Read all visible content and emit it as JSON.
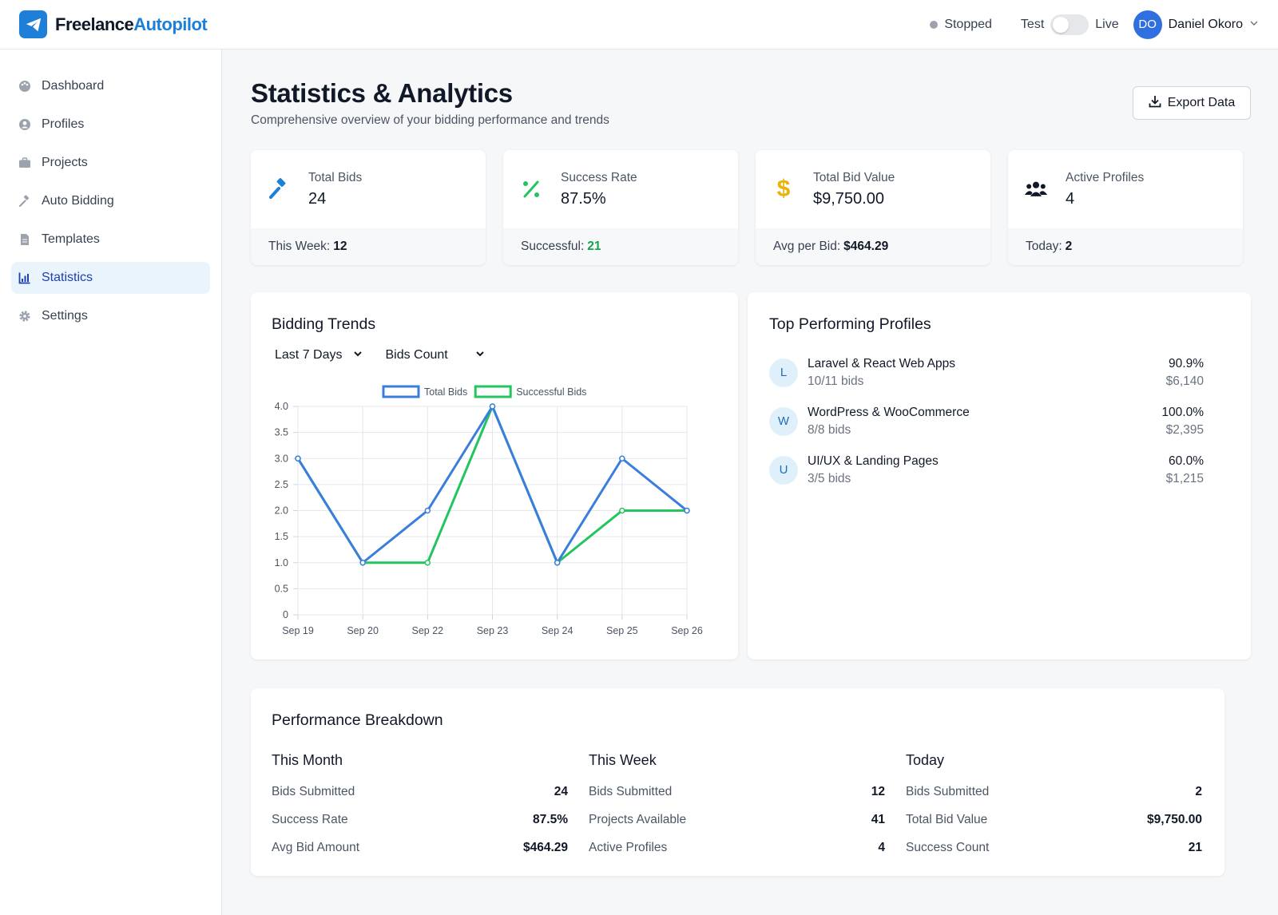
{
  "app": {
    "name_part1": "Freelance",
    "name_part2": "Autopilot"
  },
  "header": {
    "status_label": "Stopped",
    "mode_test": "Test",
    "mode_live": "Live",
    "user_initials": "DO",
    "user_name": "Daniel Okoro"
  },
  "sidebar": {
    "items": [
      {
        "label": "Dashboard",
        "icon": "palette-icon"
      },
      {
        "label": "Profiles",
        "icon": "user-circle-icon"
      },
      {
        "label": "Projects",
        "icon": "briefcase-icon"
      },
      {
        "label": "Auto Bidding",
        "icon": "gavel-icon"
      },
      {
        "label": "Templates",
        "icon": "file-icon"
      },
      {
        "label": "Statistics",
        "icon": "chart-icon",
        "active": true
      },
      {
        "label": "Settings",
        "icon": "gear-icon"
      }
    ]
  },
  "page": {
    "title": "Statistics & Analytics",
    "subtitle": "Comprehensive overview of your bidding performance and trends",
    "export_label": "Export Data"
  },
  "stats": [
    {
      "label": "Total Bids",
      "value": "24",
      "foot_label": "This Week:",
      "foot_value": "12",
      "icon": "gavel-icon",
      "color": "#1d7fd8"
    },
    {
      "label": "Success Rate",
      "value": "87.5%",
      "foot_label": "Successful:",
      "foot_value": "21",
      "icon": "percent-icon",
      "color": "#22c55e"
    },
    {
      "label": "Total Bid Value",
      "value": "$9,750.00",
      "foot_label": "Avg per Bid:",
      "foot_value": "$464.29",
      "icon": "dollar-icon",
      "color": "#eab308"
    },
    {
      "label": "Active Profiles",
      "value": "4",
      "foot_label": "Today:",
      "foot_value": "2",
      "icon": "users-icon",
      "color": "#111827"
    }
  ],
  "trends": {
    "title": "Bidding Trends",
    "range_select": "Last 7 Days",
    "metric_select": "Bids Count"
  },
  "chart_data": {
    "type": "line",
    "x": [
      "Sep 19",
      "Sep 20",
      "Sep 22",
      "Sep 23",
      "Sep 24",
      "Sep 25",
      "Sep 26"
    ],
    "series": [
      {
        "name": "Total Bids",
        "values": [
          3,
          1,
          2,
          4,
          1,
          3,
          2
        ],
        "color": "#3b7ddd"
      },
      {
        "name": "Successful Bids",
        "values": [
          3,
          1,
          1,
          4,
          1,
          2,
          2
        ],
        "color": "#22c55e"
      }
    ],
    "yticks": [
      "0",
      "0.5",
      "1.0",
      "1.5",
      "2.0",
      "2.5",
      "3.0",
      "3.5",
      "4.0"
    ],
    "ylim": [
      0,
      4
    ],
    "grid": true,
    "legend": "top"
  },
  "top_profiles": {
    "title": "Top Performing Profiles",
    "items": [
      {
        "initial": "L",
        "name": "Laravel & React Web Apps",
        "bids": "10/11 bids",
        "rate": "90.9%",
        "value": "$6,140"
      },
      {
        "initial": "W",
        "name": "WordPress & WooCommerce",
        "bids": "8/8 bids",
        "rate": "100.0%",
        "value": "$2,395"
      },
      {
        "initial": "U",
        "name": "UI/UX & Landing Pages",
        "bids": "3/5 bids",
        "rate": "60.0%",
        "value": "$1,215"
      }
    ]
  },
  "breakdown": {
    "title": "Performance Breakdown",
    "columns": [
      {
        "title": "This Month",
        "rows": [
          {
            "label": "Bids Submitted",
            "value": "24"
          },
          {
            "label": "Success Rate",
            "value": "87.5%"
          },
          {
            "label": "Avg Bid Amount",
            "value": "$464.29"
          }
        ]
      },
      {
        "title": "This Week",
        "rows": [
          {
            "label": "Bids Submitted",
            "value": "12"
          },
          {
            "label": "Projects Available",
            "value": "41"
          },
          {
            "label": "Active Profiles",
            "value": "4"
          }
        ]
      },
      {
        "title": "Today",
        "rows": [
          {
            "label": "Bids Submitted",
            "value": "2"
          },
          {
            "label": "Total Bid Value",
            "value": "$9,750.00"
          },
          {
            "label": "Success Count",
            "value": "21"
          }
        ]
      }
    ]
  }
}
